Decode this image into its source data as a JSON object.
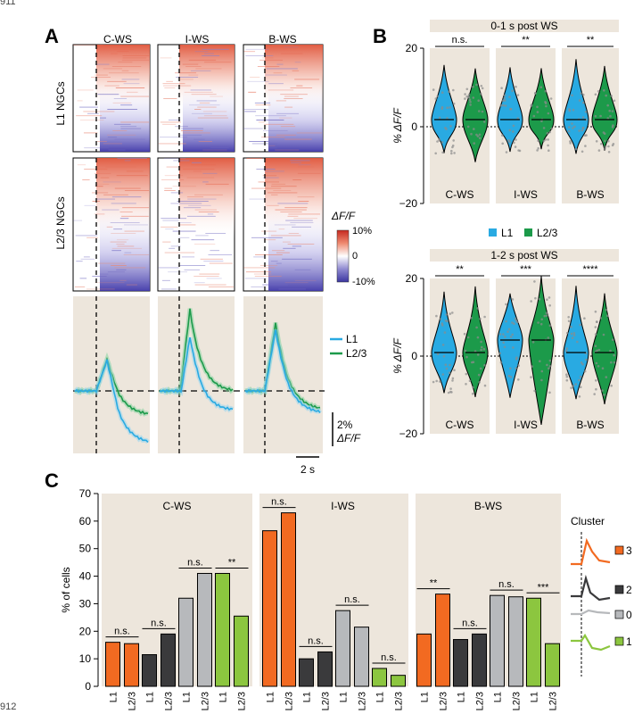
{
  "page_numbers": {
    "top": "911",
    "bottom": "912"
  },
  "panel_labels": {
    "a": "A",
    "b": "B",
    "c": "C"
  },
  "panel_a": {
    "conditions": [
      "C-WS",
      "I-WS",
      "B-WS"
    ],
    "row_labels": [
      "L1 NGCs",
      "L2/3 NGCs"
    ],
    "colorbar": {
      "title": "ΔF/F",
      "ticks": [
        "10%",
        "0",
        "-10%"
      ]
    },
    "legend": [
      "L1",
      "L2/3"
    ],
    "scalebar_y": [
      "2%",
      "ΔF/F"
    ],
    "scalebar_x": "2 s"
  },
  "panel_b": {
    "plots": [
      {
        "title": "0-1 s post WS",
        "significance": [
          "n.s.",
          "**",
          "**"
        ]
      },
      {
        "title": "1-2 s post WS",
        "significance": [
          "**",
          "***",
          "****"
        ]
      }
    ],
    "ylabel": "% ΔF/F",
    "yticks": [
      "20",
      "0",
      "−20"
    ],
    "groups": [
      "C-WS",
      "I-WS",
      "B-WS"
    ],
    "legend": [
      "L1",
      "L2/3"
    ]
  },
  "chart_data": {
    "type": "bar",
    "ylabel": "% of cells",
    "ylim": [
      0,
      70
    ],
    "yticks": [
      "0",
      "10",
      "20",
      "30",
      "40",
      "50",
      "60",
      "70"
    ],
    "cluster_title": "Cluster",
    "clusters": [
      "3",
      "2",
      "0",
      "1"
    ],
    "xtick_labels": [
      "L1",
      "L2/3"
    ],
    "colors": {
      "cluster3": "#f26a21",
      "cluster2": "#3a3a3c",
      "cluster0": "#b7b9bc",
      "cluster1": "#8cc63f",
      "L1": "#29aae2",
      "L23": "#1c9a4a",
      "panel_bg": "#ede6dc"
    },
    "groups": [
      {
        "title": "C-WS",
        "values": [
          [
            16,
            15.5
          ],
          [
            11.5,
            19
          ],
          [
            32,
            41
          ],
          [
            41,
            25.5
          ]
        ],
        "significance": [
          "n.s.",
          "n.s.",
          "n.s.",
          "**"
        ]
      },
      {
        "title": "I-WS",
        "values": [
          [
            56.5,
            63
          ],
          [
            10,
            12.5
          ],
          [
            27.5,
            21.5
          ],
          [
            6.5,
            4
          ]
        ],
        "significance": [
          "n.s.",
          "n.s.",
          "n.s.",
          "n.s."
        ]
      },
      {
        "title": "B-WS",
        "values": [
          [
            19,
            33.5
          ],
          [
            17,
            19
          ],
          [
            33,
            32.5
          ],
          [
            32,
            15.5
          ]
        ],
        "significance": [
          "**",
          "n.s.",
          "n.s.",
          "***"
        ]
      }
    ]
  }
}
